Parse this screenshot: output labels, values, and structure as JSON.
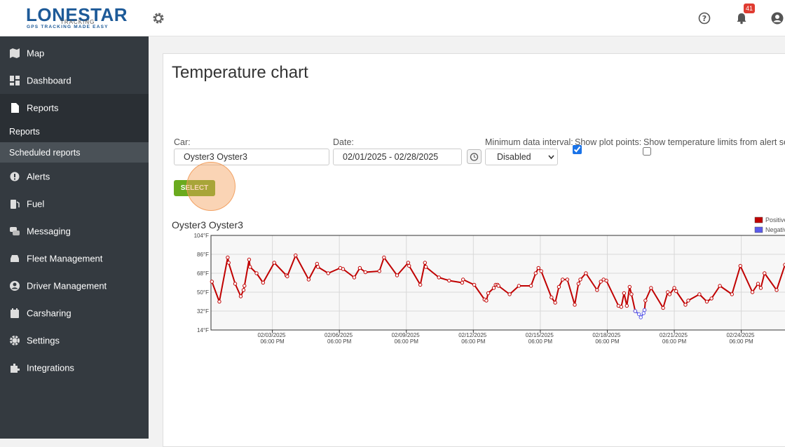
{
  "header": {
    "logo_title": "LONESTAR",
    "logo_sub": "TRACKING",
    "logo_tagline": "GPS TRACKING MADE EASY",
    "notifications": 41
  },
  "sidebar": {
    "items": [
      "Map",
      "Dashboard",
      "Reports",
      "Alerts",
      "Fuel",
      "Messaging",
      "Fleet Management",
      "Driver Management",
      "Carsharing",
      "Settings",
      "Integrations"
    ],
    "submenu": [
      "Reports",
      "Scheduled reports"
    ]
  },
  "page": {
    "title": "Temperature chart",
    "form": {
      "car_label": "Car:",
      "car_value": "Oyster3 Oyster3",
      "date_label": "Date:",
      "date_value": "02/01/2025 - 02/28/2025",
      "interval_label": "Minimum data interval:",
      "interval_value": "Disabled",
      "plot_points_label": "Show plot points:",
      "plot_points_checked": true,
      "limits_label": "Show temperature limits from alert settings:",
      "limits_checked": false
    },
    "button": "SELECT"
  },
  "chart_data": {
    "type": "line",
    "title": "Oyster3 Oyster3",
    "x": [
      "2025-02-01T01:00",
      "2025-02-01T09:00",
      "2025-02-01T18:00",
      "2025-02-01T19:00",
      "2025-02-02T02:00",
      "2025-02-02T08:00",
      "2025-02-02T11:00",
      "2025-02-02T12:00",
      "2025-02-02T17:00",
      "2025-02-02T18:00",
      "2025-02-03T01:00",
      "2025-02-03T08:00",
      "2025-02-03T20:00",
      "2025-02-04T09:00",
      "2025-02-04T10:00",
      "2025-02-04T19:00",
      "2025-02-05T09:00",
      "2025-02-05T18:00",
      "2025-02-05T19:00",
      "2025-02-06T06:00",
      "2025-02-06T19:00",
      "2025-02-06T22:00",
      "2025-02-07T10:00",
      "2025-02-07T16:00",
      "2025-02-07T22:00",
      "2025-02-08T13:00",
      "2025-02-08T18:00",
      "2025-02-09T08:00",
      "2025-02-09T20:00",
      "2025-02-09T21:00",
      "2025-02-10T09:00",
      "2025-02-10T14:00",
      "2025-02-10T15:00",
      "2025-02-11T05:00",
      "2025-02-11T16:00",
      "2025-02-12T06:00",
      "2025-02-12T07:00",
      "2025-02-12T19:00",
      "2025-02-13T06:00",
      "2025-02-13T08:00",
      "2025-02-13T10:00",
      "2025-02-13T16:00",
      "2025-02-13T18:00",
      "2025-02-13T20:00",
      "2025-02-13T21:00",
      "2025-02-14T09:00",
      "2025-02-14T19:00",
      "2025-02-15T08:00",
      "2025-02-15T13:00",
      "2025-02-15T16:00",
      "2025-02-15T19:00",
      "2025-02-16T06:00",
      "2025-02-16T10:00",
      "2025-02-16T14:00",
      "2025-02-16T18:00",
      "2025-02-16T23:00",
      "2025-02-17T07:00",
      "2025-02-17T11:00",
      "2025-02-17T13:00",
      "2025-02-17T19:00",
      "2025-02-18T07:00",
      "2025-02-18T11:00",
      "2025-02-18T14:00",
      "2025-02-18T17:00",
      "2025-02-19T06:00",
      "2025-02-19T09:00",
      "2025-02-19T12:00",
      "2025-02-19T15:00",
      "2025-02-19T18:00",
      "2025-02-19T20:00",
      "2025-02-20T00:00",
      "2025-02-20T04:00",
      "2025-02-20T06:00",
      "2025-02-20T09:00",
      "2025-02-20T10:00",
      "2025-02-20T11:00",
      "2025-02-20T17:00",
      "2025-02-21T06:00",
      "2025-02-21T11:00",
      "2025-02-21T13:00",
      "2025-02-21T18:00",
      "2025-02-21T20:00",
      "2025-02-22T06:00",
      "2025-02-22T09:00",
      "2025-02-22T21:00",
      "2025-02-23T05:00",
      "2025-02-23T10:00",
      "2025-02-23T19:00",
      "2025-02-24T08:00",
      "2025-02-24T17:00",
      "2025-02-25T06:00",
      "2025-02-25T12:00",
      "2025-02-25T15:00",
      "2025-02-25T19:00",
      "2025-02-26T08:00",
      "2025-02-26T17:00"
    ],
    "series": [
      {
        "name": "Positive",
        "color": "#c00000",
        "values": [
          60,
          41,
          83,
          78,
          58,
          46,
          52,
          56,
          81,
          74,
          68,
          59,
          78,
          66,
          65,
          85,
          62,
          77,
          74,
          68,
          73,
          72,
          64,
          73,
          69,
          70,
          83,
          66,
          78,
          75,
          57,
          78,
          74,
          64,
          61,
          59,
          62,
          57,
          43,
          42,
          49,
          54,
          57,
          57,
          56,
          48,
          56,
          56,
          68,
          73,
          70,
          45,
          40,
          55,
          62,
          62,
          38,
          58,
          62,
          68,
          52,
          60,
          62,
          61,
          37,
          36,
          49,
          37,
          55,
          48,
          32,
          null,
          null,
          null,
          33,
          42,
          54,
          35,
          50,
          48,
          54,
          51,
          38,
          42,
          48,
          41,
          44,
          56,
          48,
          75,
          50,
          58,
          54,
          68,
          52,
          76
        ]
      },
      {
        "name": "Negative",
        "color": "#5b5bea",
        "values": [
          null,
          null,
          null,
          null,
          null,
          null,
          null,
          null,
          null,
          null,
          null,
          null,
          null,
          null,
          null,
          null,
          null,
          null,
          null,
          null,
          null,
          null,
          null,
          null,
          null,
          null,
          null,
          null,
          null,
          null,
          null,
          null,
          null,
          null,
          null,
          null,
          null,
          null,
          null,
          null,
          null,
          null,
          null,
          null,
          null,
          null,
          null,
          null,
          null,
          null,
          null,
          null,
          null,
          null,
          null,
          null,
          null,
          null,
          null,
          null,
          null,
          null,
          null,
          null,
          null,
          null,
          null,
          null,
          null,
          null,
          32,
          29,
          26,
          30,
          33,
          null,
          null,
          null,
          null,
          null,
          null,
          null,
          null,
          null,
          null,
          null,
          null,
          null,
          null,
          null,
          null,
          null,
          null,
          null,
          null,
          null
        ]
      }
    ],
    "xlim": [
      "2025-02-01T00:00",
      "2025-03-01T00:00"
    ],
    "xticks": [
      {
        "value": "2025-02-03T18:00",
        "label": "02/03/2025 06:00 PM"
      },
      {
        "value": "2025-02-06T18:00",
        "label": "02/06/2025 06:00 PM"
      },
      {
        "value": "2025-02-09T18:00",
        "label": "02/09/2025 06:00 PM"
      },
      {
        "value": "2025-02-12T18:00",
        "label": "02/12/2025 06:00 PM"
      },
      {
        "value": "2025-02-15T18:00",
        "label": "02/15/2025 06:00 PM"
      },
      {
        "value": "2025-02-18T18:00",
        "label": "02/18/2025 06:00 PM"
      },
      {
        "value": "2025-02-21T18:00",
        "label": "02/21/2025 06:00 PM"
      },
      {
        "value": "2025-02-24T18:00",
        "label": "02/24/2025 06:00 PM"
      }
    ],
    "ylim": [
      14,
      104
    ],
    "yticks": [
      {
        "value": 14,
        "label": "14°F"
      },
      {
        "value": 32,
        "label": "32°F"
      },
      {
        "value": 50,
        "label": "50°F"
      },
      {
        "value": 68,
        "label": "68°F"
      },
      {
        "value": 86,
        "label": "86°F"
      },
      {
        "value": 104,
        "label": "104°F"
      }
    ],
    "grid": true,
    "markers": true,
    "legend": "top-right"
  }
}
